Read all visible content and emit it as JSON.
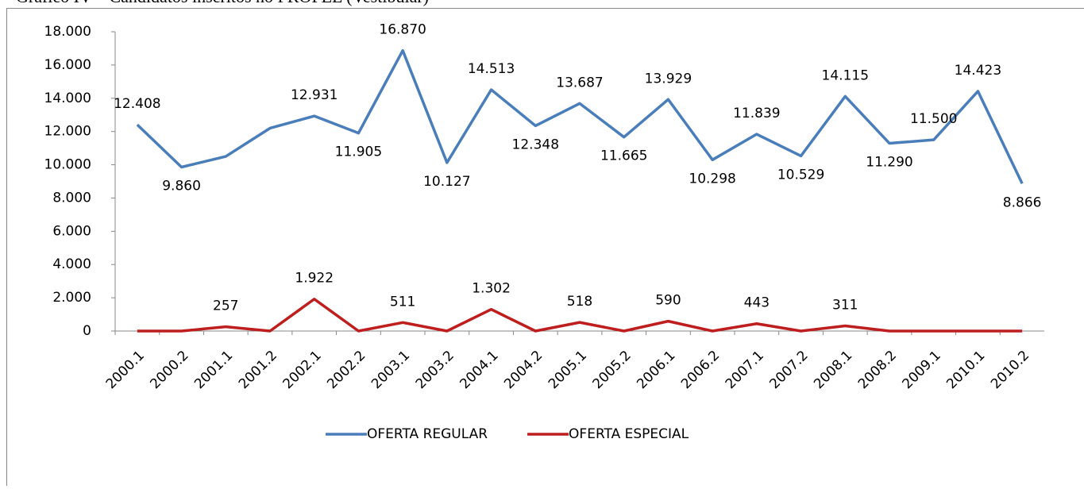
{
  "chart_data": {
    "type": "line",
    "title": "Gráfico IV – Candidatos inscritos no PROFEL (Vestibular)",
    "categories": [
      "2000.1",
      "2000.2",
      "2001.1",
      "2001.2",
      "2002.1",
      "2002.2",
      "2003.1",
      "2003.2",
      "2004.1",
      "2004.2",
      "2005.1",
      "2005.2",
      "2006.1",
      "2006.2",
      "2007.1",
      "2007.2",
      "2008.1",
      "2008.2",
      "2009.1",
      "2010.1",
      "2010.2"
    ],
    "series": [
      {
        "name": "OFERTA REGULAR",
        "color": "#4a7ebb",
        "values": [
          12408,
          9860,
          10500,
          12200,
          12931,
          11905,
          16870,
          10127,
          14513,
          12348,
          13687,
          11665,
          13929,
          10298,
          11839,
          10529,
          14115,
          11290,
          11500,
          14423,
          8866
        ],
        "value_labels": [
          "12.408",
          "9.860",
          null,
          null,
          "12.931",
          "11.905",
          "16.870",
          "10.127",
          "14.513",
          "12.348",
          "13.687",
          "11.665",
          "13.929",
          "10.298",
          "11.839",
          "10.529",
          "14.115",
          "11.290",
          "11.500",
          "14.423",
          "8.866"
        ]
      },
      {
        "name": "OFERTA ESPECIAL",
        "color": "#be1e1e",
        "values": [
          0,
          0,
          257,
          0,
          1922,
          0,
          511,
          0,
          1302,
          0,
          518,
          0,
          590,
          0,
          443,
          0,
          311,
          0,
          0,
          0,
          0
        ],
        "value_labels": [
          null,
          null,
          "257",
          null,
          "1.922",
          null,
          "511",
          null,
          "1.302",
          null,
          "518",
          null,
          "590",
          null,
          "443",
          null,
          "311",
          null,
          null,
          null,
          null
        ]
      }
    ],
    "ylim": [
      0,
      18000
    ],
    "yticks": [
      0,
      {
        "value": 2000,
        "label": "2.000"
      },
      {
        "value": 4000,
        "label": "4.000"
      },
      {
        "value": 6000,
        "label": "6.000"
      },
      {
        "value": 8000,
        "label": "8.000"
      },
      {
        "value": 10000,
        "label": "10.000"
      },
      {
        "value": 12000,
        "label": "12.000"
      },
      {
        "value": 14000,
        "label": "14.000"
      },
      {
        "value": 16000,
        "label": "16.000"
      },
      {
        "value": 18000,
        "label": "18.000"
      }
    ],
    "legend": "bottom"
  }
}
